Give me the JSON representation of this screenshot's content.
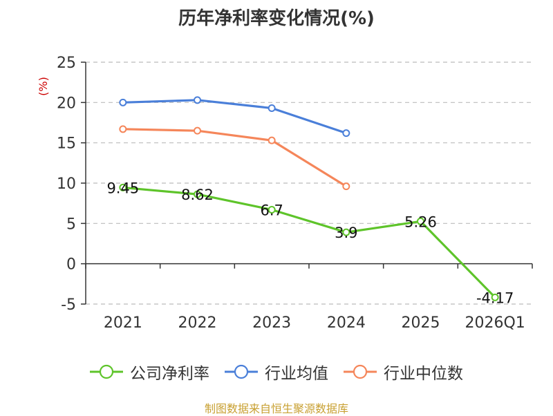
{
  "chart_data": {
    "type": "line",
    "title": "历年净利率变化情况(%)",
    "ylabel": "(%)",
    "categories": [
      "2021",
      "2022",
      "2023",
      "2024",
      "2025",
      "2026Q1"
    ],
    "ylim": [
      -5,
      25
    ],
    "yticks": [
      "-5",
      "0",
      "5",
      "10",
      "15",
      "20",
      "25"
    ],
    "grid": "horizontal dashed",
    "legend_position": "bottom",
    "series": [
      {
        "name": "公司净利率",
        "color": "#5ec42a",
        "values": [
          9.45,
          8.62,
          6.7,
          3.9,
          5.26,
          -4.17
        ],
        "labels": [
          "9.45",
          "8.62",
          "6.7",
          "3.9",
          "5.26",
          "-4.17"
        ]
      },
      {
        "name": "行业均值",
        "color": "#4a7fd9",
        "values": [
          20.0,
          20.3,
          19.3,
          16.2,
          null,
          null
        ]
      },
      {
        "name": "行业中位数",
        "color": "#f5865a",
        "values": [
          16.7,
          16.5,
          15.3,
          9.6,
          null,
          null
        ]
      }
    ]
  },
  "footer": {
    "source": "制图数据来自恒生聚源数据库"
  }
}
